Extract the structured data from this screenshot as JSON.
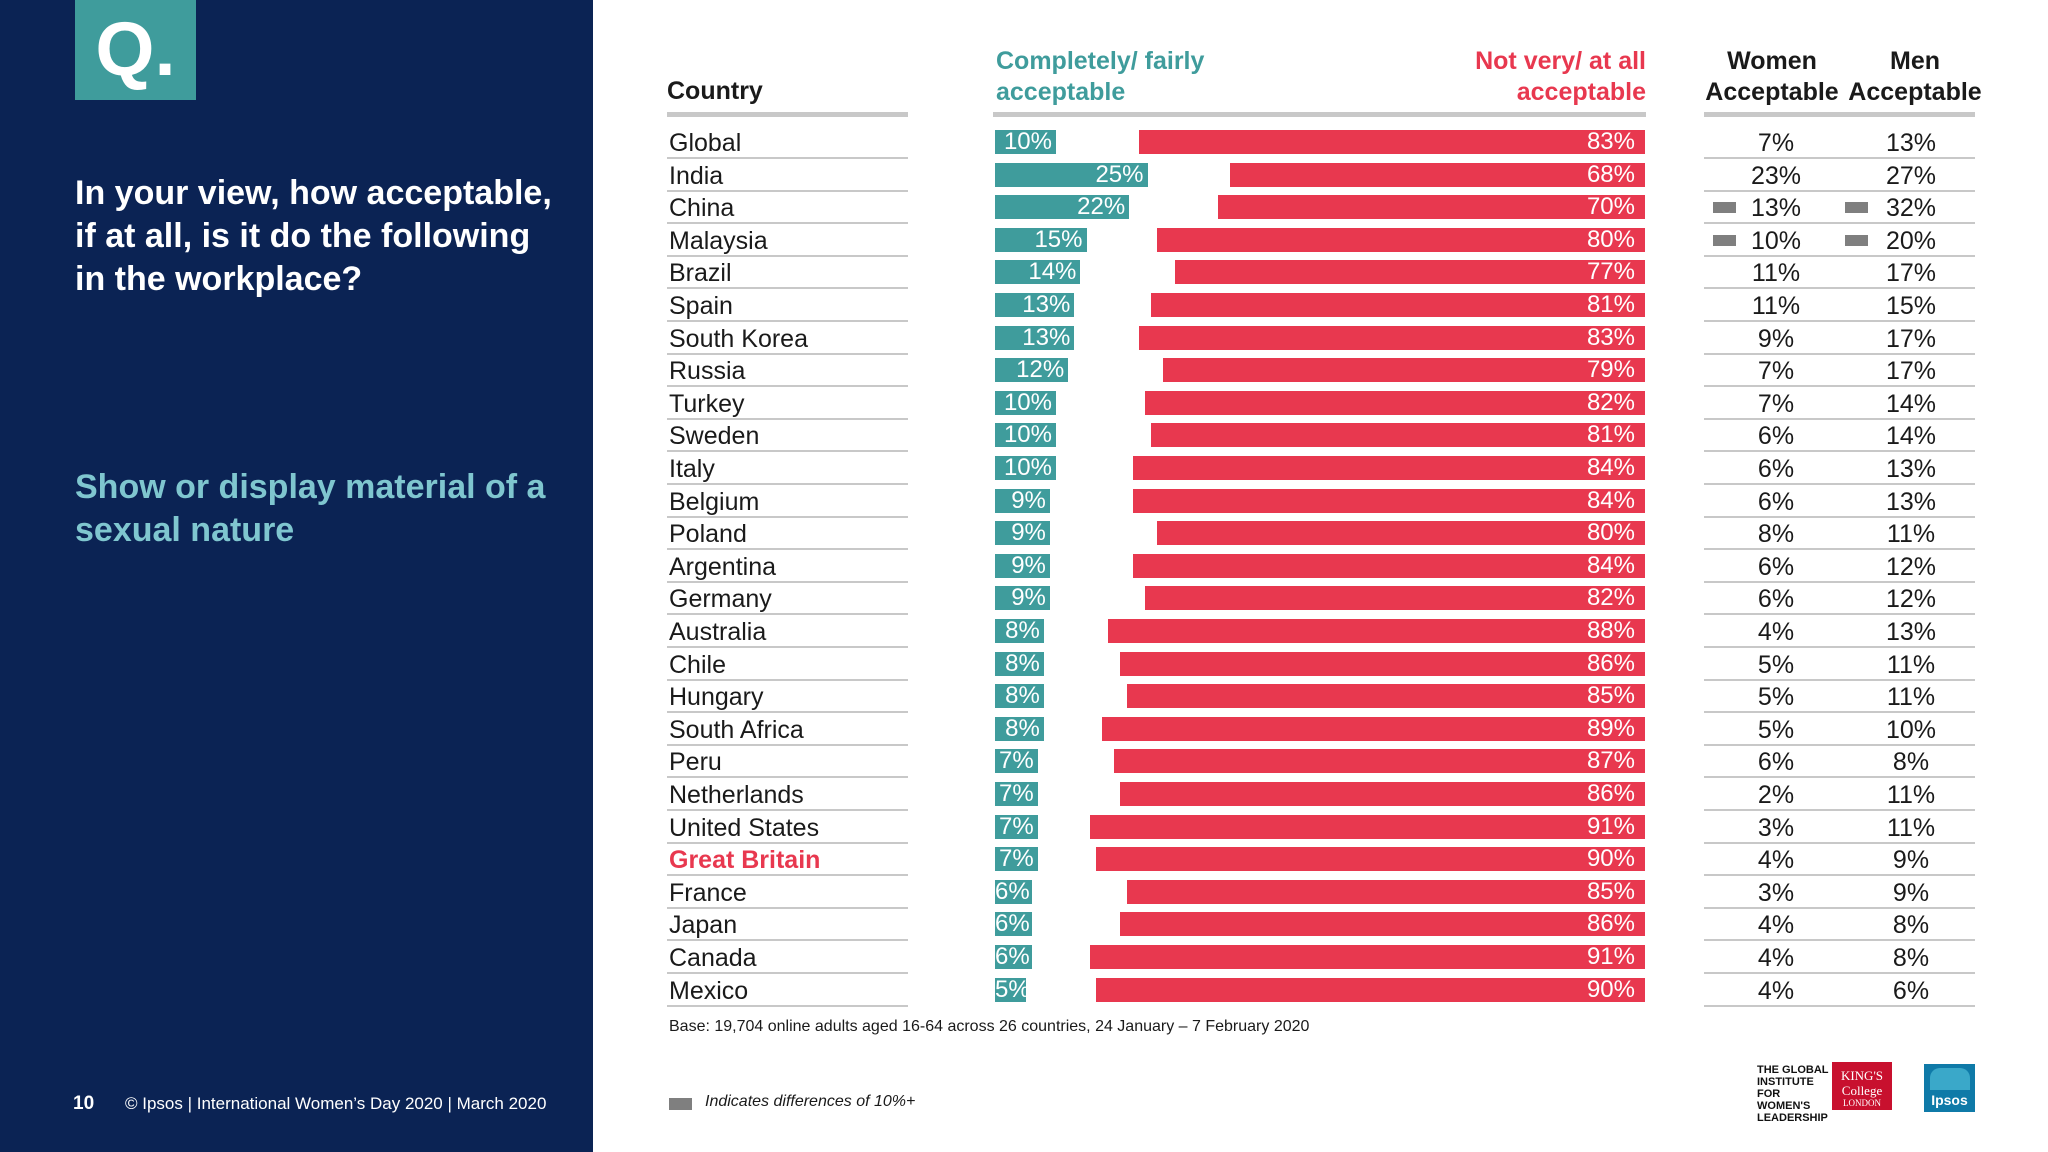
{
  "left_panel": {
    "badge": "Q.",
    "question": "In your view, how acceptable, if at all, is it do the following in the workplace?",
    "topic": "Show or display material of a sexual nature",
    "page_number": "10",
    "footer": "© Ipsos | International Women’s Day 2020 | March 2020"
  },
  "colors": {
    "acceptable": "#3f9c9c",
    "not_acceptable": "#e8384f",
    "navy": "#0b2354",
    "flag": "#7f7f7f"
  },
  "chart_data": {
    "type": "bar",
    "orientation": "horizontal-diverging",
    "headers": {
      "country": "Country",
      "acceptable": "Completely/ fairly acceptable",
      "not_acceptable": "Not very/ at all acceptable",
      "women": "Women Acceptable",
      "men": "Men Acceptable"
    },
    "highlight": "Great Britain",
    "categories": [
      "Global",
      "India",
      "China",
      "Malaysia",
      "Brazil",
      "Spain",
      "South Korea",
      "Russia",
      "Turkey",
      "Sweden",
      "Italy",
      "Belgium",
      "Poland",
      "Argentina",
      "Germany",
      "Australia",
      "Chile",
      "Hungary",
      "South Africa",
      "Peru",
      "Netherlands",
      "United States",
      "Great Britain",
      "France",
      "Japan",
      "Canada",
      "Mexico"
    ],
    "series": [
      {
        "name": "Completely/ fairly acceptable",
        "values": [
          10,
          25,
          22,
          15,
          14,
          13,
          13,
          12,
          10,
          10,
          10,
          9,
          9,
          9,
          9,
          8,
          8,
          8,
          8,
          7,
          7,
          7,
          7,
          6,
          6,
          6,
          5
        ]
      },
      {
        "name": "Not very/ at all acceptable",
        "values": [
          83,
          68,
          70,
          80,
          77,
          81,
          83,
          79,
          82,
          81,
          84,
          84,
          80,
          84,
          82,
          88,
          86,
          85,
          89,
          87,
          86,
          91,
          90,
          85,
          86,
          91,
          90
        ]
      },
      {
        "name": "Women Acceptable",
        "values": [
          7,
          23,
          13,
          10,
          11,
          11,
          9,
          7,
          7,
          6,
          6,
          6,
          8,
          6,
          6,
          4,
          5,
          5,
          5,
          6,
          2,
          3,
          4,
          3,
          4,
          4,
          4
        ]
      },
      {
        "name": "Men Acceptable",
        "values": [
          13,
          27,
          32,
          20,
          17,
          15,
          17,
          17,
          14,
          14,
          13,
          13,
          11,
          12,
          12,
          13,
          11,
          11,
          10,
          8,
          11,
          11,
          9,
          9,
          8,
          8,
          6
        ]
      }
    ],
    "flagged_rows": [
      "China",
      "Malaysia"
    ],
    "unit": "%",
    "base_note": "Base: 19,704 online adults aged 16-64 across 26 countries,  24 January – 7 February 2020",
    "legend": "Indicates differences of 10%+"
  },
  "logos": {
    "giwl": "THE GLOBAL INSTITUTE FOR WOMEN'S LEADERSHIP",
    "kings_1": "KING'S College",
    "kings_2": "LONDON",
    "ipsos": "Ipsos"
  }
}
